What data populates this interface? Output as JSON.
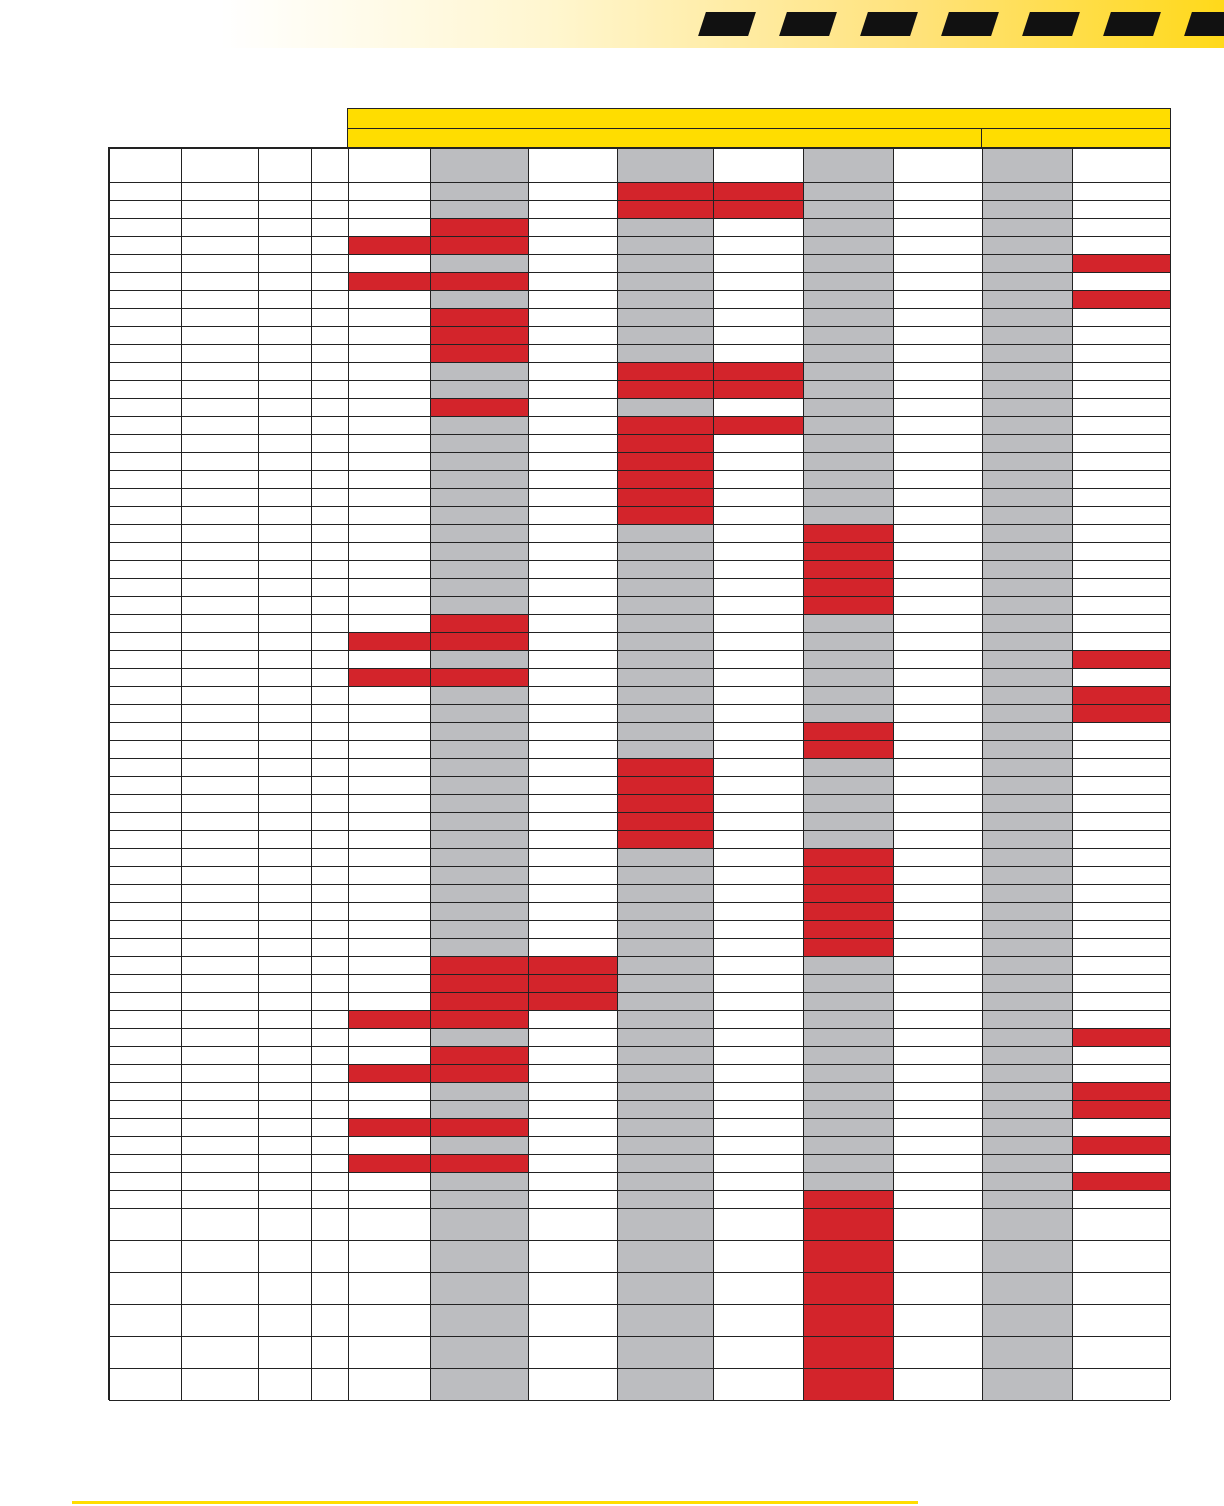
{
  "colors": {
    "accent_yellow": "#ffdd00",
    "highlight_red": "#d3242b",
    "shade_gray": "#bcbdc0",
    "stripe_black": "#111111"
  },
  "header": {
    "banner_label": "",
    "group_a_label": "",
    "group_b_label": ""
  },
  "table": {
    "row_count": 66,
    "column_count": 14,
    "shaded_columns": [
      5,
      7,
      9,
      11
    ],
    "red_cells": [
      [
        1,
        7
      ],
      [
        1,
        8
      ],
      [
        2,
        7
      ],
      [
        2,
        8
      ],
      [
        3,
        5
      ],
      [
        3,
        13
      ],
      [
        4,
        4
      ],
      [
        4,
        5
      ],
      [
        4,
        13
      ],
      [
        5,
        12
      ],
      [
        5,
        13
      ],
      [
        6,
        4
      ],
      [
        6,
        5
      ],
      [
        6,
        13
      ],
      [
        7,
        12
      ],
      [
        7,
        13
      ],
      [
        8,
        5
      ],
      [
        8,
        13
      ],
      [
        9,
        5
      ],
      [
        9,
        13
      ],
      [
        10,
        5
      ],
      [
        10,
        13
      ],
      [
        11,
        7
      ],
      [
        11,
        8
      ],
      [
        12,
        7
      ],
      [
        12,
        8
      ],
      [
        13,
        5
      ],
      [
        13,
        13
      ],
      [
        14,
        7
      ],
      [
        14,
        8
      ],
      [
        15,
        7
      ],
      [
        16,
        7
      ],
      [
        17,
        7
      ],
      [
        18,
        7
      ],
      [
        19,
        7
      ],
      [
        20,
        9
      ],
      [
        21,
        9
      ],
      [
        22,
        9
      ],
      [
        23,
        9
      ],
      [
        24,
        9
      ],
      [
        25,
        5
      ],
      [
        25,
        13
      ],
      [
        26,
        4
      ],
      [
        26,
        5
      ],
      [
        26,
        13
      ],
      [
        27,
        12
      ],
      [
        27,
        13
      ],
      [
        28,
        4
      ],
      [
        28,
        5
      ],
      [
        28,
        13
      ],
      [
        29,
        12
      ],
      [
        29,
        13
      ],
      [
        30,
        12
      ],
      [
        30,
        13
      ],
      [
        31,
        9
      ],
      [
        32,
        9
      ],
      [
        33,
        7
      ],
      [
        34,
        7
      ],
      [
        35,
        7
      ],
      [
        36,
        7
      ],
      [
        37,
        7
      ],
      [
        38,
        9
      ],
      [
        39,
        9
      ],
      [
        40,
        9
      ],
      [
        41,
        9
      ],
      [
        42,
        9
      ],
      [
        43,
        9
      ],
      [
        44,
        5
      ],
      [
        44,
        6
      ],
      [
        44,
        13
      ],
      [
        45,
        5
      ],
      [
        45,
        6
      ],
      [
        45,
        13
      ],
      [
        46,
        5
      ],
      [
        46,
        6
      ],
      [
        46,
        13
      ],
      [
        47,
        4
      ],
      [
        47,
        5
      ],
      [
        47,
        13
      ],
      [
        48,
        12
      ],
      [
        48,
        13
      ],
      [
        49,
        5
      ],
      [
        49,
        13
      ],
      [
        50,
        4
      ],
      [
        50,
        5
      ],
      [
        50,
        13
      ],
      [
        51,
        12
      ],
      [
        51,
        13
      ],
      [
        52,
        12
      ],
      [
        52,
        13
      ],
      [
        53,
        4
      ],
      [
        53,
        5
      ],
      [
        53,
        13
      ],
      [
        54,
        12
      ],
      [
        54,
        13
      ],
      [
        55,
        4
      ],
      [
        55,
        5
      ],
      [
        55,
        13
      ],
      [
        56,
        12
      ],
      [
        56,
        13
      ],
      [
        57,
        9
      ],
      [
        58,
        9
      ],
      [
        59,
        9
      ],
      [
        60,
        9
      ],
      [
        61,
        9
      ],
      [
        62,
        9
      ],
      [
        63,
        9
      ]
    ]
  }
}
